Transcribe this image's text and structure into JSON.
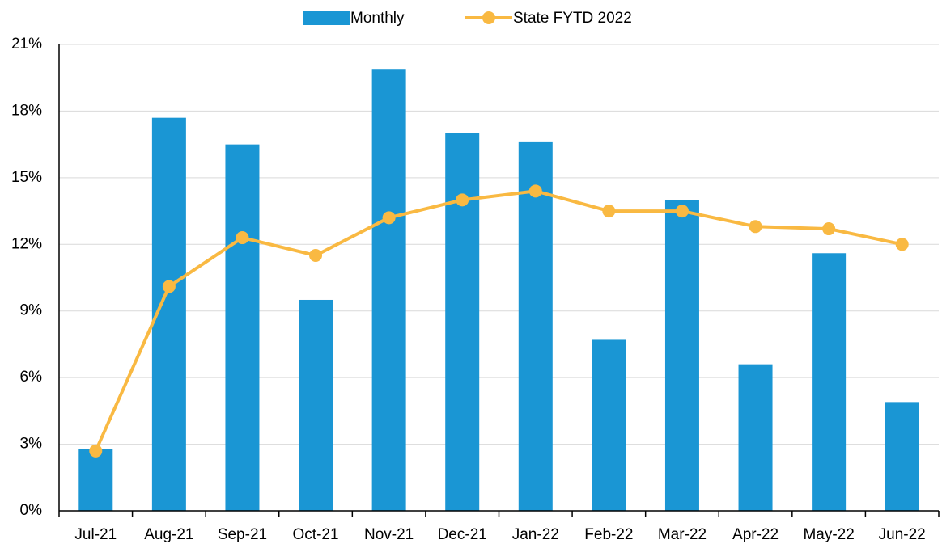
{
  "chart_data": {
    "type": "bar",
    "categories": [
      "Jul-21",
      "Aug-21",
      "Sep-21",
      "Oct-21",
      "Nov-21",
      "Dec-21",
      "Jan-22",
      "Feb-22",
      "Mar-22",
      "Apr-22",
      "May-22",
      "Jun-22"
    ],
    "series": [
      {
        "name": "Monthly",
        "type": "bar",
        "color": "#1a96d4",
        "values": [
          2.8,
          17.7,
          16.5,
          9.5,
          19.9,
          17.0,
          16.6,
          7.7,
          14.0,
          6.6,
          11.6,
          4.9
        ]
      },
      {
        "name": "State FYTD 2022",
        "type": "line",
        "color": "#f9b942",
        "values": [
          2.7,
          10.1,
          12.3,
          11.5,
          13.2,
          14.0,
          14.4,
          13.5,
          13.5,
          12.8,
          12.7,
          12.0
        ]
      }
    ],
    "ylim": [
      0,
      21
    ],
    "yticks": [
      {
        "value": 0,
        "label": "0%"
      },
      {
        "value": 3,
        "label": "3%"
      },
      {
        "value": 6,
        "label": "6%"
      },
      {
        "value": 9,
        "label": "9%"
      },
      {
        "value": 12,
        "label": "12%"
      },
      {
        "value": 15,
        "label": "15%"
      },
      {
        "value": 18,
        "label": "18%"
      },
      {
        "value": 21,
        "label": "21%"
      }
    ],
    "grid": true,
    "legend": "top"
  }
}
